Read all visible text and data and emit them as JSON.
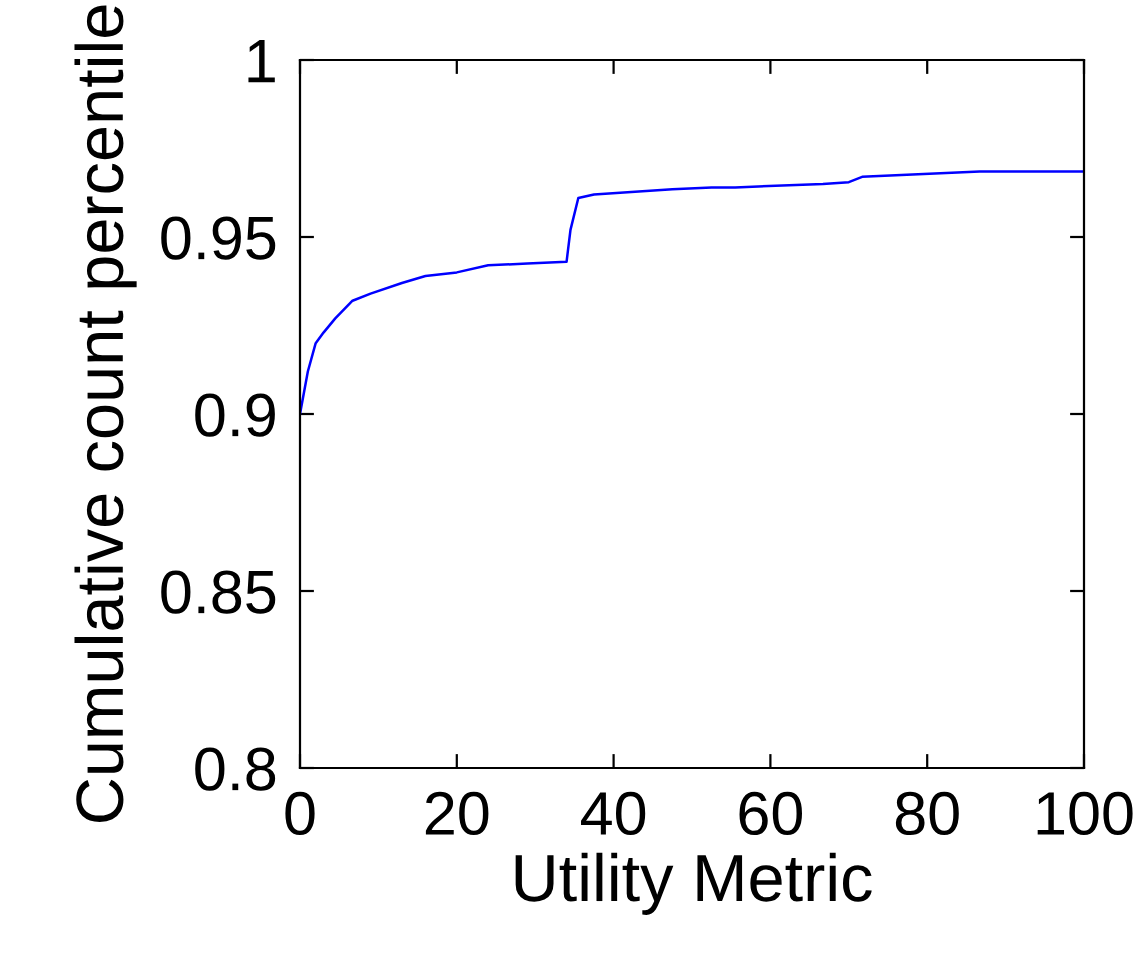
{
  "chart_data": {
    "type": "line",
    "xlabel": "Utility Metric",
    "ylabel": "Cumulative count percentile",
    "xlim": [
      0,
      100
    ],
    "ylim": [
      0.8,
      1
    ],
    "xticks": [
      0,
      20,
      40,
      60,
      80,
      100
    ],
    "yticks": [
      0.8,
      0.85,
      0.9,
      0.95,
      1
    ],
    "grid": false,
    "legend": false,
    "marker": "none",
    "line_style": "solid",
    "series": [
      {
        "color": "#0000ff",
        "x": [
          0,
          1,
          2,
          3,
          4.5,
          6.7,
          9,
          13,
          16,
          20,
          24,
          29,
          34,
          34.5,
          35.5,
          37.5,
          47.5,
          52.5,
          55.5,
          66.7,
          70,
          71.7,
          76.7,
          86.7,
          100
        ],
        "values": [
          0.9,
          0.912,
          0.92,
          0.923,
          0.927,
          0.932,
          0.934,
          0.937,
          0.939,
          0.94,
          0.942,
          0.9425,
          0.943,
          0.952,
          0.961,
          0.962,
          0.9635,
          0.964,
          0.964,
          0.965,
          0.9655,
          0.967,
          0.9675,
          0.9685,
          0.9685
        ]
      }
    ]
  }
}
